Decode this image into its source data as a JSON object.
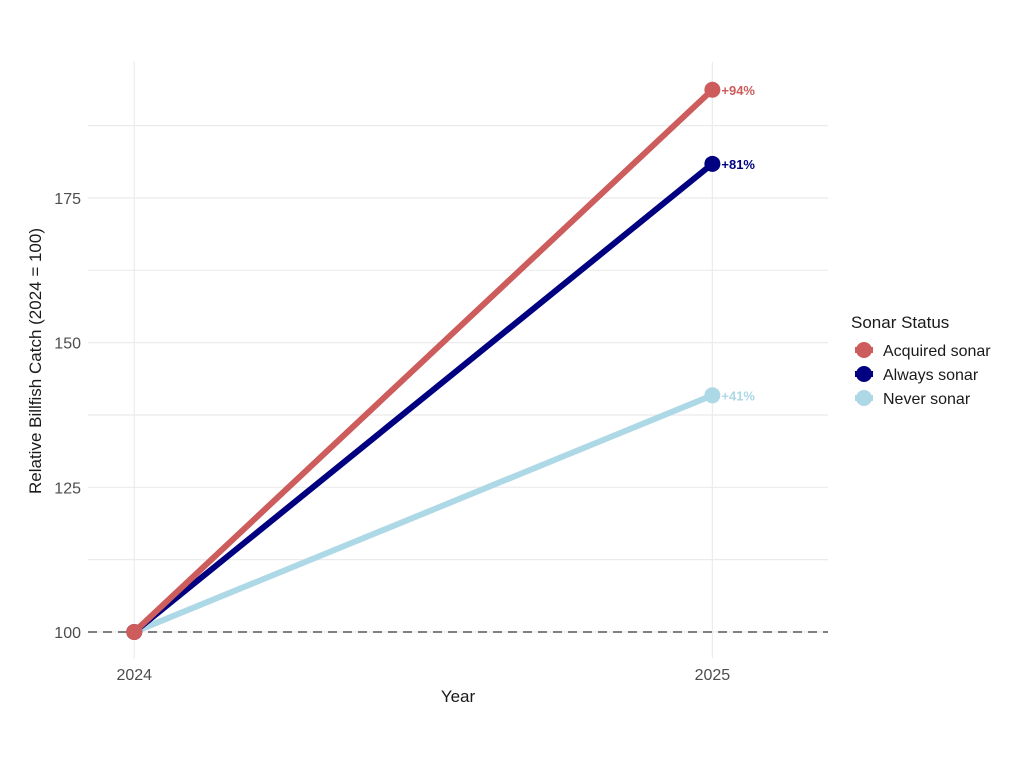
{
  "chart_data": {
    "type": "line",
    "title": "",
    "xlabel": "Year",
    "ylabel": "Relative Billfish Catch (2024 = 100)",
    "x": [
      "2024",
      "2025"
    ],
    "xlim": [
      2023.92,
      2025.2
    ],
    "ylim": [
      95.5,
      198.5
    ],
    "yticks": [
      100,
      125,
      150,
      175
    ],
    "ytick_labels": [
      "100",
      "125",
      "150",
      "175"
    ],
    "grid": true,
    "baseline": 100,
    "baseline_style": "dashed",
    "legend": {
      "title": "Sonar Status",
      "placement": "right"
    },
    "series": [
      {
        "name": "Acquired sonar",
        "values": [
          100,
          193.7
        ],
        "color": "#cd5c5c",
        "end_label": "+94%"
      },
      {
        "name": "Always sonar",
        "values": [
          100,
          180.9
        ],
        "color": "#000080",
        "end_label": "+81%"
      },
      {
        "name": "Never sonar",
        "values": [
          100,
          140.9
        ],
        "color": "#add8e6",
        "end_label": "+41%"
      }
    ]
  }
}
